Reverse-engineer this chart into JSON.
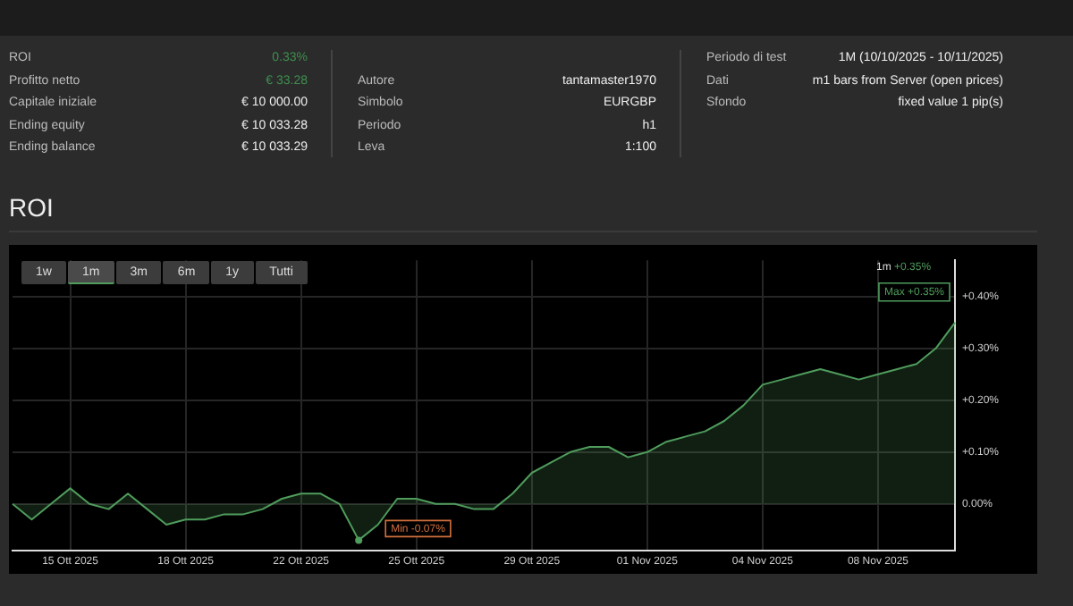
{
  "chart_data": {
    "type": "area",
    "title": "ROI",
    "categories": [
      null,
      null,
      null,
      "15 Ott 2025",
      null,
      null,
      null,
      null,
      null,
      "18 Ott 2025",
      null,
      null,
      null,
      null,
      null,
      "22 Ott 2025",
      null,
      null,
      null,
      null,
      null,
      "25 Ott 2025",
      null,
      null,
      null,
      null,
      null,
      "29 Ott 2025",
      null,
      null,
      null,
      null,
      null,
      "01 Nov 2025",
      null,
      null,
      null,
      null,
      null,
      "04 Nov 2025",
      null,
      null,
      null,
      null,
      null,
      "08 Nov 2025",
      null,
      null,
      null,
      null
    ],
    "series": [
      {
        "color": "#4f9c5c",
        "values": [
          0.0,
          -0.03,
          0.0,
          0.03,
          0.0,
          -0.01,
          0.02,
          -0.01,
          -0.04,
          -0.03,
          -0.03,
          -0.02,
          -0.02,
          -0.01,
          0.01,
          0.02,
          0.02,
          0.0,
          -0.07,
          -0.04,
          0.01,
          0.01,
          0.0,
          0.0,
          -0.01,
          -0.01,
          0.02,
          0.06,
          0.08,
          0.1,
          0.11,
          0.11,
          0.09,
          0.1,
          0.12,
          0.13,
          0.14,
          0.16,
          0.19,
          0.23,
          0.24,
          0.25,
          0.26,
          0.25,
          0.24,
          0.25,
          0.26,
          0.27,
          0.3,
          0.35
        ]
      }
    ],
    "ylim": [
      -0.09,
      0.47
    ],
    "yticks": [
      {
        "value": 0,
        "label": "0.00%"
      },
      {
        "value": 0.1,
        "label": "+0.10%"
      },
      {
        "value": 0.2,
        "label": "+0.20%"
      },
      {
        "value": 0.3,
        "label": "+0.30%"
      },
      {
        "value": 0.4,
        "label": "+0.40%"
      }
    ],
    "grid": true,
    "legend": false,
    "marker": "none",
    "annotations": [
      "1w",
      "1m",
      "3m",
      "6m",
      "1y",
      "Tutti",
      "1m",
      "+0.35%",
      "Min -0.07%",
      "Max +0.35%",
      "ROI",
      "0.33%",
      "Profitto netto",
      "€ 33.28",
      "Capitale iniziale",
      "€ 10 000.00",
      "Ending equity",
      "€ 10 033.28",
      "Ending balance",
      "€ 10 033.29",
      "Autore",
      "tantamaster1970",
      "Simbolo",
      "EURGBP",
      "Periodo",
      "h1",
      "Leva",
      "1:100",
      "Periodo di test",
      "1M (10/10/2025 - 10/11/2025)",
      "Dati",
      "m1 bars from Server (open prices)",
      "Sfondo",
      "fixed value 1 pip(s)"
    ]
  }
}
